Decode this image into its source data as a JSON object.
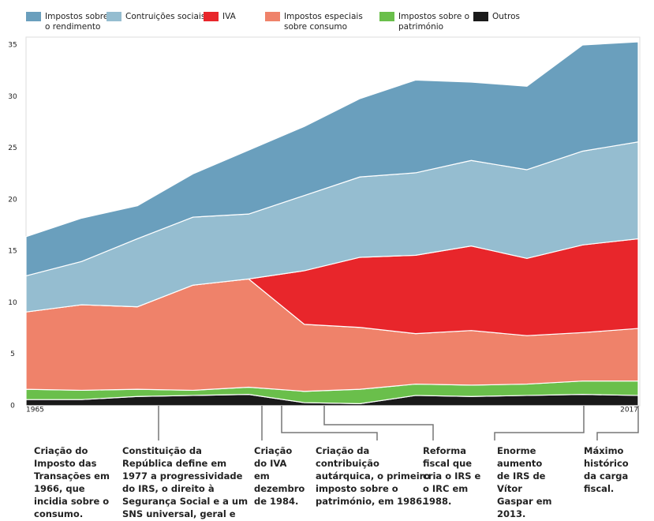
{
  "chart_data": {
    "type": "stacked-area",
    "categories": [
      "1965",
      null,
      null,
      null,
      null,
      null,
      null,
      null,
      null,
      null,
      null,
      "2017"
    ],
    "ylim": [
      0,
      35
    ],
    "yticks": [
      0,
      5,
      10,
      15,
      20,
      25,
      30,
      35
    ],
    "series": [
      {
        "name": "Impostos sobre o rendimento",
        "color": "#6a9fbd",
        "values": [
          3.8,
          4.2,
          3.2,
          4.2,
          6.2,
          6.7,
          7.6,
          9.0,
          7.6,
          8.1,
          10.3,
          9.7
        ]
      },
      {
        "name": "Contruições sociais",
        "color": "#95bdd0",
        "values": [
          3.5,
          4.2,
          6.6,
          6.6,
          6.3,
          7.3,
          7.8,
          8.0,
          8.3,
          8.6,
          9.1,
          9.4
        ]
      },
      {
        "name": "IVA",
        "color": "#e8262b",
        "values": [
          0,
          0,
          0,
          0,
          0,
          5.2,
          6.8,
          7.6,
          8.2,
          7.5,
          8.5,
          8.7
        ]
      },
      {
        "name": "Impostos especiais sobre consumo",
        "color": "#ef826a",
        "values": [
          7.5,
          8.3,
          8.0,
          10.2,
          10.5,
          6.5,
          6.0,
          4.9,
          5.3,
          4.7,
          4.7,
          5.1
        ]
      },
      {
        "name": "Impostos sobre o património",
        "color": "#6abf4b",
        "values": [
          1.0,
          0.9,
          0.7,
          0.5,
          0.7,
          1.1,
          1.4,
          1.1,
          1.1,
          1.1,
          1.3,
          1.4
        ]
      },
      {
        "name": "Outros",
        "color": "#1a1a1a",
        "values": [
          0.6,
          0.6,
          0.9,
          1.0,
          1.1,
          0.3,
          0.2,
          1.0,
          0.9,
          1.0,
          1.1,
          1.0
        ]
      }
    ],
    "annotations": [
      "Criação do Imposto das Transações em 1966, que incidia sobre o consumo.",
      "Constituição da República define em 1977 a progressividade do IRS, o direito à Segurança Social e a um SNS universal, geral e tendencialmente gratuito.",
      "Criação do IVA em dezembro de 1984.",
      "Criação da contribuição autárquica, o primeiro imposto sobre o património, em 1986.",
      "Reforma fiscal que cria o IRS e o IRC em 1988.",
      "Enorme aumento de IRS de Vítor Gaspar em 2013.",
      "Máximo histórico da carga fiscal."
    ]
  }
}
